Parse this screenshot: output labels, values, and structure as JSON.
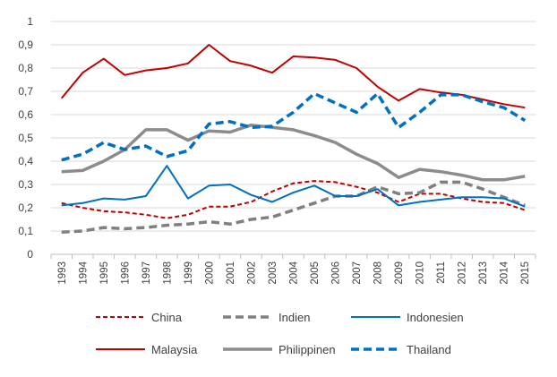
{
  "chart_data": {
    "type": "line",
    "title": "",
    "xlabel": "",
    "ylabel": "",
    "ylim": [
      0,
      1
    ],
    "yticks": [
      "0",
      "0,1",
      "0,2",
      "0,3",
      "0,4",
      "0,5",
      "0,6",
      "0,7",
      "0,8",
      "0,9",
      "1"
    ],
    "x": [
      "1993",
      "1994",
      "1995",
      "1996",
      "1997",
      "1998",
      "1999",
      "2000",
      "2001",
      "2002",
      "2003",
      "2004",
      "2005",
      "2006",
      "2007",
      "2008",
      "2009",
      "2010",
      "2011",
      "2012",
      "2013",
      "2014",
      "2015"
    ],
    "grid": true,
    "legend_position": "bottom",
    "series": [
      {
        "name": "China",
        "color": "#c00000",
        "style": "dashed",
        "values": [
          0.22,
          0.2,
          0.185,
          0.18,
          0.17,
          0.155,
          0.17,
          0.205,
          0.205,
          0.225,
          0.27,
          0.305,
          0.315,
          0.31,
          0.29,
          0.265,
          0.225,
          0.26,
          0.26,
          0.24,
          0.225,
          0.22,
          0.19
        ]
      },
      {
        "name": "Indien",
        "color": "#808080",
        "style": "dashed-thick",
        "values": [
          0.095,
          0.1,
          0.115,
          0.11,
          0.115,
          0.125,
          0.13,
          0.14,
          0.13,
          0.15,
          0.16,
          0.19,
          0.22,
          0.25,
          0.25,
          0.29,
          0.26,
          0.265,
          0.31,
          0.31,
          0.28,
          0.245,
          0.21
        ]
      },
      {
        "name": "Indonesien",
        "color": "#0070c0",
        "style": "solid",
        "values": [
          0.21,
          0.22,
          0.24,
          0.235,
          0.25,
          0.38,
          0.24,
          0.295,
          0.3,
          0.255,
          0.225,
          0.265,
          0.295,
          0.25,
          0.25,
          0.28,
          0.21,
          0.225,
          0.235,
          0.245,
          0.245,
          0.24,
          0.205
        ]
      },
      {
        "name": "Malaysia",
        "color": "#c00000",
        "style": "solid",
        "values": [
          0.67,
          0.78,
          0.84,
          0.77,
          0.79,
          0.8,
          0.82,
          0.9,
          0.83,
          0.81,
          0.78,
          0.85,
          0.845,
          0.835,
          0.8,
          0.72,
          0.66,
          0.71,
          0.695,
          0.685,
          0.665,
          0.645,
          0.63
        ]
      },
      {
        "name": "Philippinen",
        "color": "#8c8c8c",
        "style": "solid-thick",
        "values": [
          0.355,
          0.36,
          0.4,
          0.45,
          0.535,
          0.535,
          0.49,
          0.53,
          0.525,
          0.555,
          0.545,
          0.535,
          0.51,
          0.48,
          0.43,
          0.39,
          0.33,
          0.365,
          0.355,
          0.34,
          0.32,
          0.32,
          0.335
        ]
      },
      {
        "name": "Thailand",
        "color": "#0070c0",
        "style": "dashed-thick",
        "values": [
          0.405,
          0.43,
          0.48,
          0.45,
          0.465,
          0.42,
          0.445,
          0.56,
          0.57,
          0.545,
          0.55,
          0.61,
          0.69,
          0.65,
          0.61,
          0.69,
          0.545,
          0.61,
          0.685,
          0.685,
          0.655,
          0.63,
          0.575
        ]
      }
    ]
  }
}
